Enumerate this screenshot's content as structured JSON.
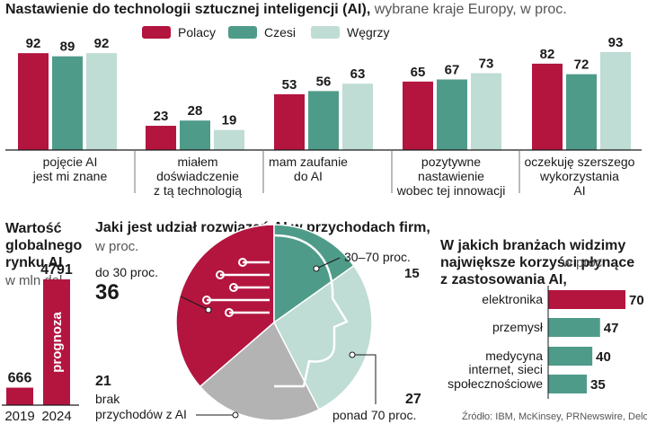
{
  "colors": {
    "polacy": "#b3153f",
    "czesi": "#4f9b8a",
    "wegry": "#bfdcd5",
    "pie_gray": "#b3b3b3",
    "text": "#1a1a1a",
    "muted": "#555555"
  },
  "chart_data": [
    {
      "type": "bar",
      "title": "Nastawienie do technologii sztucznej inteligencji (AI),",
      "subtitle": "wybrane kraje Europy, w proc.",
      "categories": [
        "pojęcie AI\njest mi znane",
        "miałem\ndoświadczenie\nz tą technologią",
        "mam zaufanie\ndo AI",
        "pozytywne\nnastawienie\nwobec tej innowacji",
        "oczekuję szerszego\nwykorzystania\nAI"
      ],
      "series": [
        {
          "name": "Polacy",
          "values": [
            92,
            23,
            53,
            65,
            82
          ]
        },
        {
          "name": "Czesi",
          "values": [
            89,
            28,
            56,
            67,
            72
          ]
        },
        {
          "name": "Węgrzy",
          "values": [
            92,
            19,
            63,
            73,
            93
          ]
        }
      ],
      "legend": [
        "Polacy",
        "Czesi",
        "Węgrzy"
      ],
      "ylim": [
        0,
        100
      ]
    },
    {
      "type": "bar",
      "title": "Wartość globalnego rynku AI",
      "subtitle": "w mln dol.",
      "categories": [
        "2019",
        "2024"
      ],
      "values": [
        666,
        4791
      ],
      "annotation": "prognoza",
      "ylim": [
        0,
        4791
      ]
    },
    {
      "type": "pie",
      "title": "Jaki jest udział rozwiązań AI w przychodach firm,",
      "subtitle": "w proc.",
      "slices": [
        {
          "label": "do 30 proc.",
          "value": 36
        },
        {
          "label": "30–70 proc.",
          "value": 15
        },
        {
          "label": "ponad 70 proc.",
          "value": 27
        },
        {
          "label": "brak\nprzychodów z AI",
          "value": 21
        }
      ]
    },
    {
      "type": "bar",
      "orientation": "horizontal",
      "title": "W jakich branżach widzimy\nnajwiększe korzyści płynące\nz zastosowania AI,",
      "subtitle": "w proc.",
      "categories": [
        "elektronika",
        "przemysł",
        "medycyna",
        "internet, sieci\nspołecznościowe"
      ],
      "values": [
        70,
        47,
        40,
        35
      ],
      "xlim": [
        0,
        70
      ]
    }
  ],
  "source": "Źródło: IBM, McKinsey, PRNewswire, Deloitte"
}
